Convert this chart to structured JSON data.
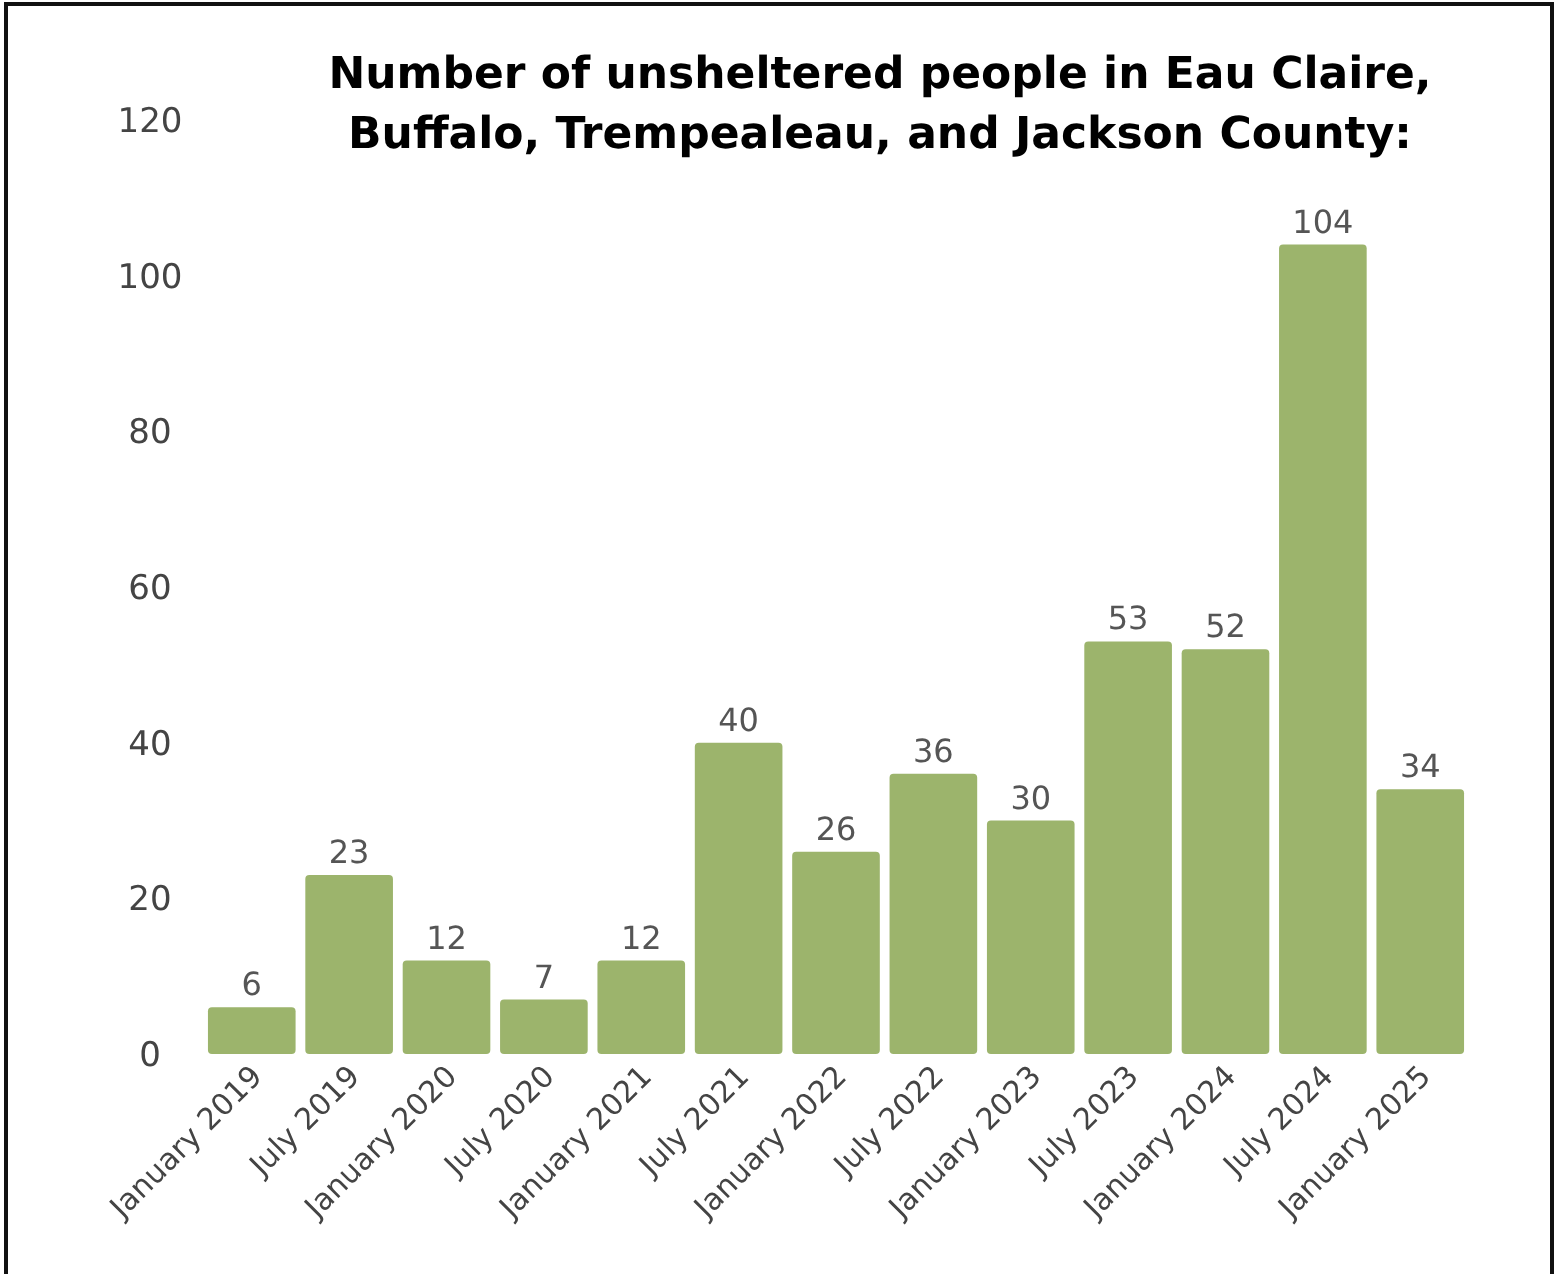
{
  "chart_data": {
    "type": "bar",
    "title": "Number of unsheltered people in Eau Claire, Buffalo, Trempealeau, and Jackson County:",
    "categories": [
      "January 2019",
      "July 2019",
      "January 2020",
      "July 2020",
      "January 2021",
      "July 2021",
      "January 2022",
      "July 2022",
      "January 2023",
      "July 2023",
      "January 2024",
      "July 2024",
      "January 2025"
    ],
    "values": [
      6,
      23,
      12,
      7,
      12,
      40,
      26,
      36,
      30,
      53,
      52,
      104,
      34
    ],
    "color": "#9cb46c",
    "ylim": [
      0,
      120
    ],
    "yticks": [
      0,
      20,
      40,
      60,
      80,
      100,
      120
    ],
    "grid": false,
    "data_labels": true
  }
}
